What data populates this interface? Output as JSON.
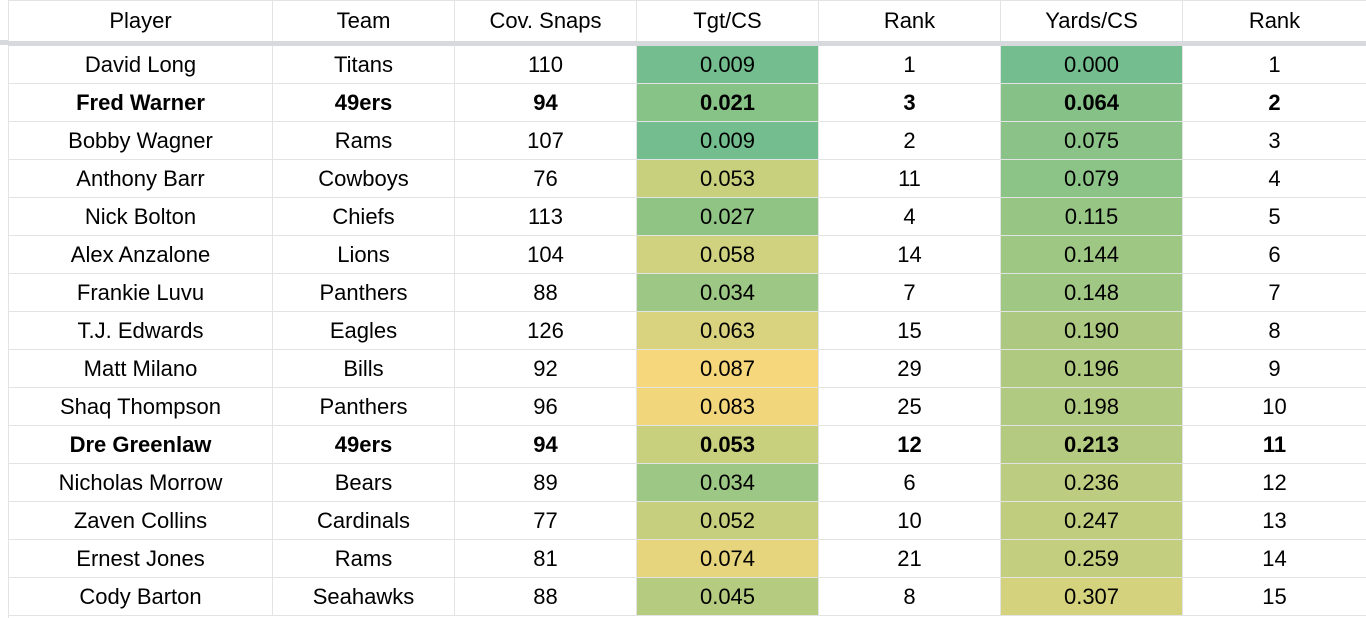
{
  "headers": [
    "Player",
    "Team",
    "Cov. Snaps",
    "Tgt/CS",
    "Rank",
    "Yards/CS",
    "Rank"
  ],
  "rows": [
    {
      "player": "David Long",
      "team": "Titans",
      "snaps": "110",
      "tgt": "0.009",
      "tgt_rank": "1",
      "yds": "0.000",
      "yds_rank": "1",
      "bold": false,
      "tgt_color": "#73bd8e",
      "yds_color": "#73bd8e"
    },
    {
      "player": "Fred Warner",
      "team": "49ers",
      "snaps": "94",
      "tgt": "0.021",
      "tgt_rank": "3",
      "yds": "0.064",
      "yds_rank": "2",
      "bold": true,
      "tgt_color": "#87c287",
      "yds_color": "#86c188"
    },
    {
      "player": "Bobby Wagner",
      "team": "Rams",
      "snaps": "107",
      "tgt": "0.009",
      "tgt_rank": "2",
      "yds": "0.075",
      "yds_rank": "3",
      "bold": false,
      "tgt_color": "#73bd8e",
      "yds_color": "#8ac287"
    },
    {
      "player": "Anthony Barr",
      "team": "Cowboys",
      "snaps": "76",
      "tgt": "0.053",
      "tgt_rank": "11",
      "yds": "0.079",
      "yds_rank": "4",
      "bold": false,
      "tgt_color": "#c8d07e",
      "yds_color": "#8cc386"
    },
    {
      "player": "Nick Bolton",
      "team": "Chiefs",
      "snaps": "113",
      "tgt": "0.027",
      "tgt_rank": "4",
      "yds": "0.115",
      "yds_rank": "5",
      "bold": false,
      "tgt_color": "#90c485",
      "yds_color": "#96c584"
    },
    {
      "player": "Alex Anzalone",
      "team": "Lions",
      "snaps": "104",
      "tgt": "0.058",
      "tgt_rank": "14",
      "yds": "0.144",
      "yds_rank": "6",
      "bold": false,
      "tgt_color": "#d0d27f",
      "yds_color": "#9fc784"
    },
    {
      "player": "Frankie Luvu",
      "team": "Panthers",
      "snaps": "88",
      "tgt": "0.034",
      "tgt_rank": "7",
      "yds": "0.148",
      "yds_rank": "7",
      "bold": false,
      "tgt_color": "#9dc784",
      "yds_color": "#a0c783"
    },
    {
      "player": "T.J. Edwards",
      "team": "Eagles",
      "snaps": "126",
      "tgt": "0.063",
      "tgt_rank": "15",
      "yds": "0.190",
      "yds_rank": "8",
      "bold": false,
      "tgt_color": "#d9d37f",
      "yds_color": "#adc981"
    },
    {
      "player": "Matt Milano",
      "team": "Bills",
      "snaps": "92",
      "tgt": "0.087",
      "tgt_rank": "29",
      "yds": "0.196",
      "yds_rank": "9",
      "bold": false,
      "tgt_color": "#f7d77c",
      "yds_color": "#afc981"
    },
    {
      "player": "Shaq Thompson",
      "team": "Panthers",
      "snaps": "96",
      "tgt": "0.083",
      "tgt_rank": "25",
      "yds": "0.198",
      "yds_rank": "10",
      "bold": false,
      "tgt_color": "#f2d67c",
      "yds_color": "#b0ca81"
    },
    {
      "player": "Dre Greenlaw",
      "team": "49ers",
      "snaps": "94",
      "tgt": "0.053",
      "tgt_rank": "12",
      "yds": "0.213",
      "yds_rank": "11",
      "bold": true,
      "tgt_color": "#c8d07e",
      "yds_color": "#b4ca80"
    },
    {
      "player": "Nicholas Morrow",
      "team": "Bears",
      "snaps": "89",
      "tgt": "0.034",
      "tgt_rank": "6",
      "yds": "0.236",
      "yds_rank": "12",
      "bold": false,
      "tgt_color": "#9dc784",
      "yds_color": "#bccc80"
    },
    {
      "player": "Zaven Collins",
      "team": "Cardinals",
      "snaps": "77",
      "tgt": "0.052",
      "tgt_rank": "10",
      "yds": "0.247",
      "yds_rank": "13",
      "bold": false,
      "tgt_color": "#c5cf7e",
      "yds_color": "#c0cd7f"
    },
    {
      "player": "Ernest Jones",
      "team": "Rams",
      "snaps": "81",
      "tgt": "0.074",
      "tgt_rank": "21",
      "yds": "0.259",
      "yds_rank": "14",
      "bold": false,
      "tgt_color": "#e7d57d",
      "yds_color": "#c4ce7f"
    },
    {
      "player": "Cody Barton",
      "team": "Seahawks",
      "snaps": "88",
      "tgt": "0.045",
      "tgt_rank": "8",
      "yds": "0.307",
      "yds_rank": "15",
      "bold": false,
      "tgt_color": "#b4cb80",
      "yds_color": "#d5d27e"
    }
  ]
}
